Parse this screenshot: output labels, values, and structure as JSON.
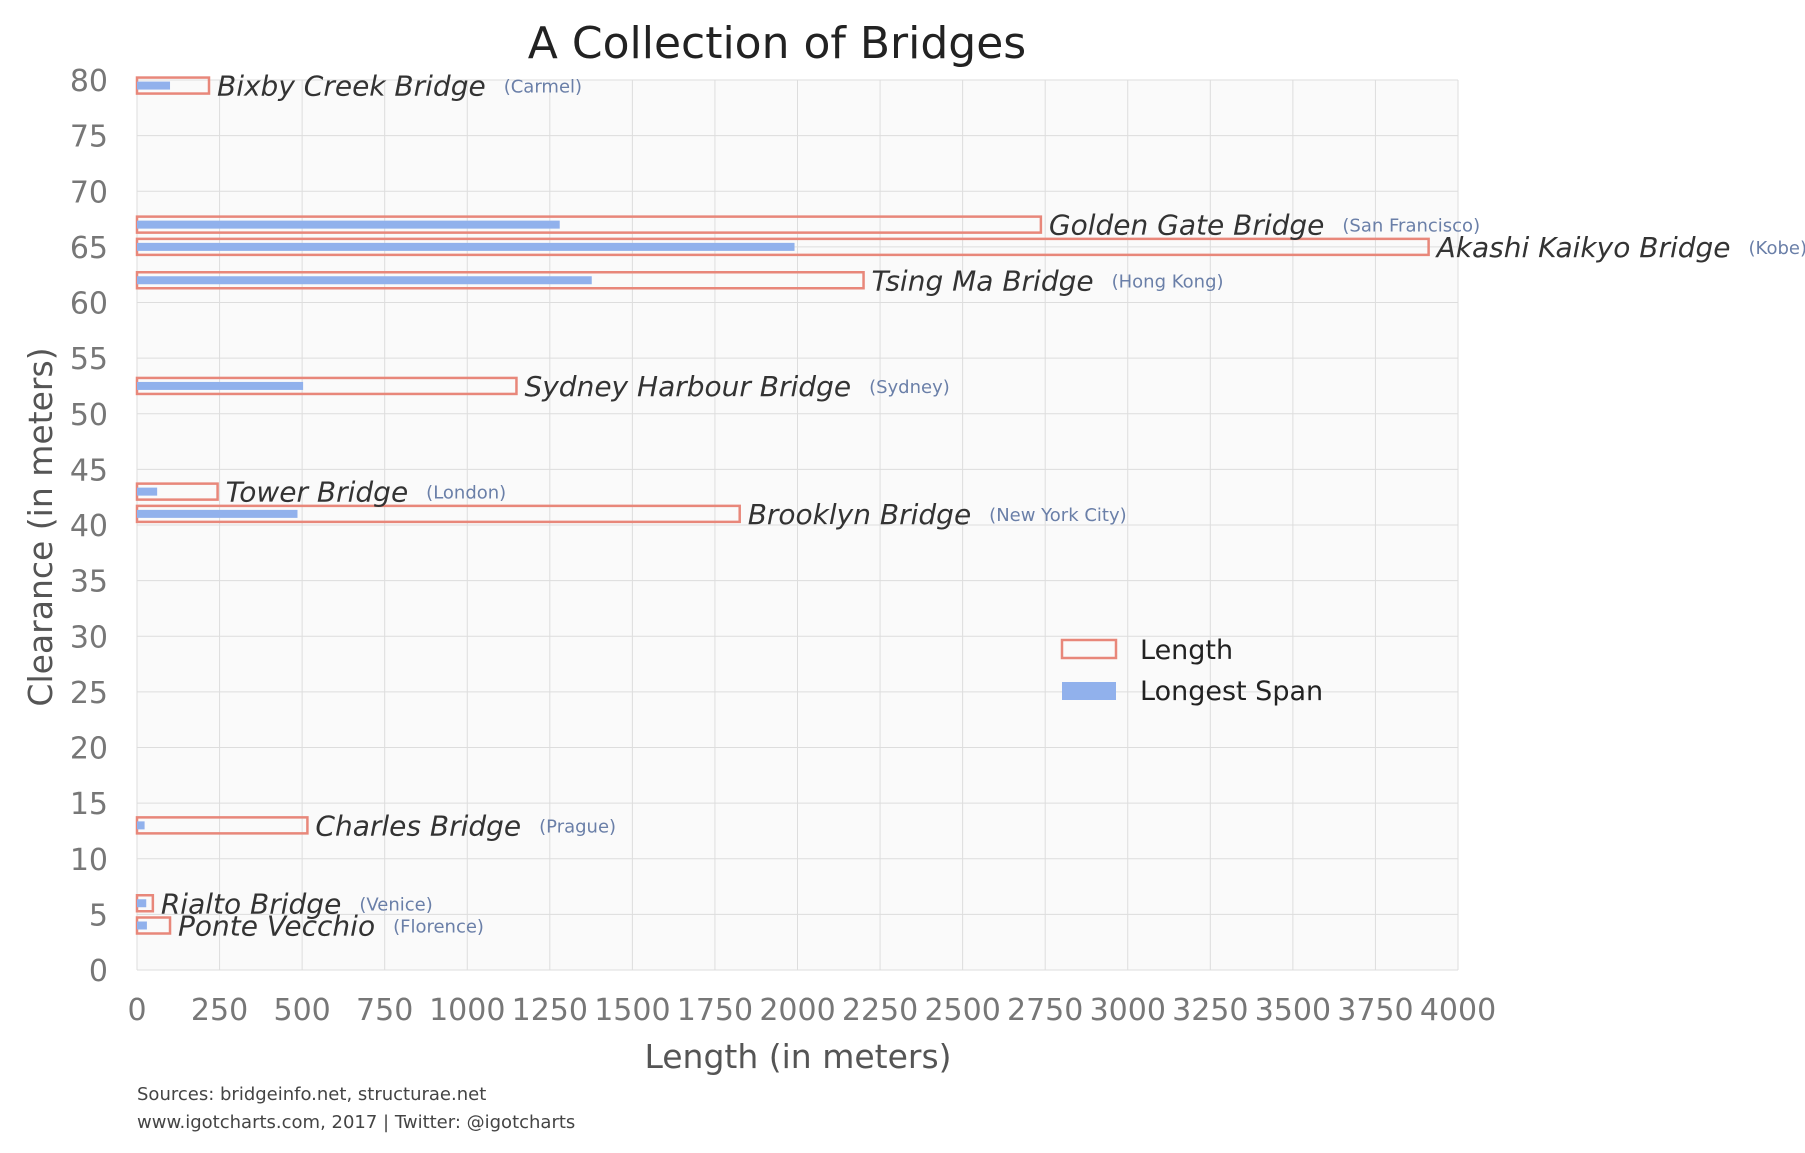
{
  "chart_data": {
    "type": "bar",
    "orientation": "horizontal",
    "title": "A Collection of Bridges",
    "xlabel": "Length (in meters)",
    "ylabel": "Clearance (in meters)",
    "xlim": [
      0,
      4000
    ],
    "ylim": [
      0,
      80
    ],
    "xticks": [
      "0",
      "250",
      "500",
      "750",
      "1000",
      "1250",
      "1500",
      "1750",
      "2000",
      "2250",
      "2500",
      "2750",
      "3000",
      "3250",
      "3500",
      "3750",
      "4000"
    ],
    "yticks": [
      "0",
      "5",
      "10",
      "15",
      "20",
      "25",
      "30",
      "35",
      "40",
      "45",
      "50",
      "55",
      "60",
      "65",
      "70",
      "75",
      "80"
    ],
    "grid": true,
    "legend_position": "center-right",
    "series": [
      {
        "name": "Length",
        "color": "#e8877a",
        "style": "outline"
      },
      {
        "name": "Longest Span",
        "color": "#91b1ec",
        "style": "filled"
      }
    ],
    "bridges": [
      {
        "name": "Bixby Creek Bridge",
        "city": "(Carmel)",
        "clearance": 79.5,
        "length": 218,
        "longest_span": 100
      },
      {
        "name": "Golden Gate Bridge",
        "city": "(San Francisco)",
        "clearance": 67,
        "length": 2737,
        "longest_span": 1280
      },
      {
        "name": "Akashi Kaikyo Bridge",
        "city": "(Kobe)",
        "clearance": 65,
        "length": 3911,
        "longest_span": 1991
      },
      {
        "name": "Tsing Ma Bridge",
        "city": "(Hong Kong)",
        "clearance": 62,
        "length": 2200,
        "longest_span": 1377
      },
      {
        "name": "Sydney Harbour Bridge",
        "city": "(Sydney)",
        "clearance": 52.5,
        "length": 1149,
        "longest_span": 503
      },
      {
        "name": "Tower Bridge",
        "city": "(London)",
        "clearance": 43,
        "length": 244,
        "longest_span": 61
      },
      {
        "name": "Brooklyn Bridge",
        "city": "(New York City)",
        "clearance": 41,
        "length": 1825,
        "longest_span": 486
      },
      {
        "name": "Charles Bridge",
        "city": "(Prague)",
        "clearance": 13,
        "length": 516,
        "longest_span": 23
      },
      {
        "name": "Rialto Bridge",
        "city": "(Venice)",
        "clearance": 6,
        "length": 48,
        "longest_span": 28
      },
      {
        "name": "Ponte Vecchio",
        "city": "(Florence)",
        "clearance": 4,
        "length": 100,
        "longest_span": 30
      }
    ]
  },
  "footer": {
    "sources": "Sources: bridgeinfo.net, structurae.net",
    "credit": "www.igotcharts.com, 2017 | Twitter: @igotcharts"
  }
}
